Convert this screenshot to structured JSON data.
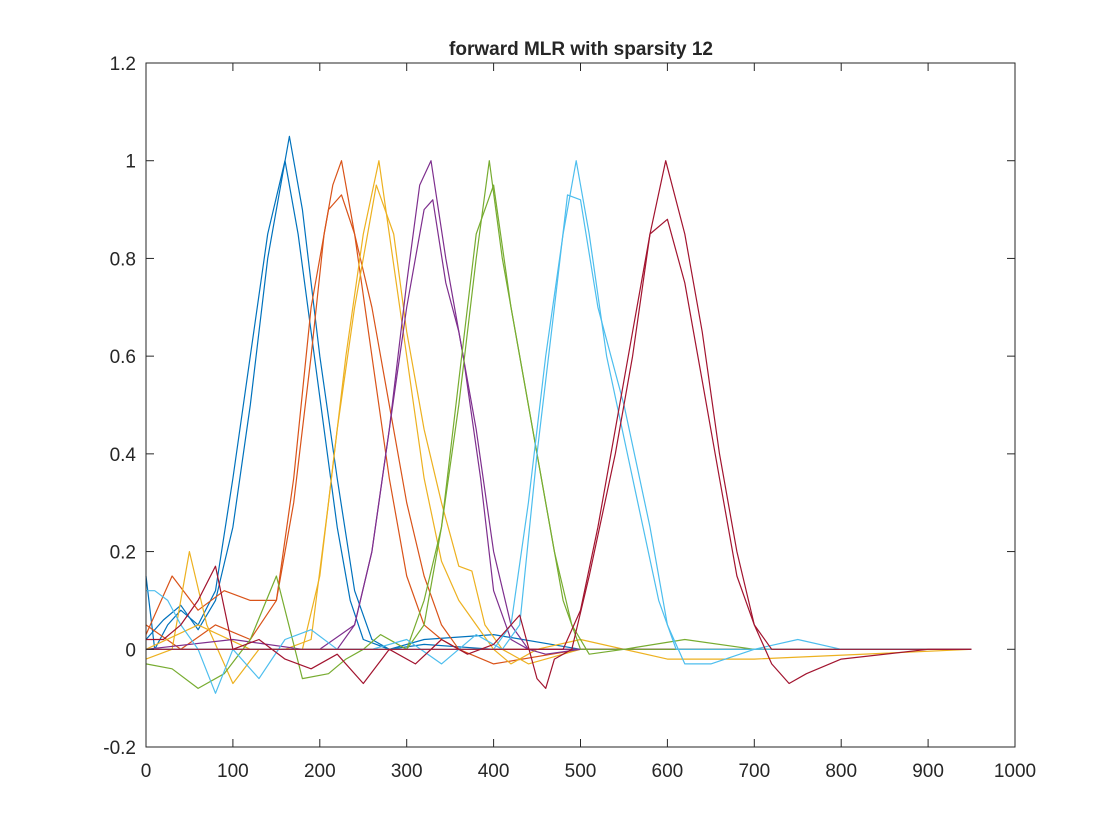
{
  "chart_data": {
    "type": "line",
    "title": "forward MLR with sparsity 12",
    "xlabel": "",
    "ylabel": "",
    "xlim": [
      0,
      1000
    ],
    "ylim": [
      -0.2,
      1.2
    ],
    "xticks": [
      "0",
      "100",
      "200",
      "300",
      "400",
      "500",
      "600",
      "700",
      "800",
      "900",
      "1000"
    ],
    "yticks": [
      "-0.2",
      "0",
      "0.2",
      "0.4",
      "0.6",
      "0.8",
      "1",
      "1.2"
    ],
    "grid": false,
    "legend": "none",
    "series": [
      {
        "color": "#0072BD",
        "x": [
          0,
          10,
          25,
          40,
          60,
          80,
          100,
          120,
          140,
          160,
          175,
          190,
          205,
          220,
          235,
          250,
          280,
          320,
          400,
          500,
          600,
          700,
          800,
          950
        ],
        "y": [
          0.15,
          0.0,
          0.05,
          0.08,
          0.05,
          0.12,
          0.35,
          0.6,
          0.85,
          1.0,
          0.85,
          0.65,
          0.45,
          0.25,
          0.1,
          0.02,
          0.0,
          0.01,
          0.0,
          0.0,
          0.0,
          0.0,
          0.0,
          0.0
        ]
      },
      {
        "color": "#0072BD",
        "x": [
          0,
          20,
          40,
          60,
          80,
          100,
          120,
          140,
          165,
          180,
          200,
          220,
          240,
          260,
          280,
          320,
          400,
          500,
          600,
          700,
          800,
          950
        ],
        "y": [
          0.02,
          0.06,
          0.09,
          0.04,
          0.1,
          0.25,
          0.5,
          0.8,
          1.05,
          0.9,
          0.6,
          0.35,
          0.12,
          0.02,
          0.0,
          0.02,
          0.03,
          0.0,
          0.0,
          0.0,
          0.0,
          0.0
        ]
      },
      {
        "color": "#D95319",
        "x": [
          0,
          30,
          60,
          90,
          120,
          150,
          170,
          190,
          205,
          215,
          225,
          240,
          260,
          280,
          300,
          320,
          340,
          360,
          380,
          420,
          500,
          600,
          700,
          950
        ],
        "y": [
          0.03,
          0.15,
          0.08,
          0.12,
          0.1,
          0.1,
          0.3,
          0.6,
          0.85,
          0.95,
          1.0,
          0.85,
          0.6,
          0.35,
          0.15,
          0.05,
          0.02,
          0.0,
          0.0,
          0.0,
          0.0,
          0.0,
          0.0,
          0.0
        ]
      },
      {
        "color": "#D95319",
        "x": [
          0,
          40,
          80,
          120,
          150,
          170,
          190,
          210,
          225,
          240,
          260,
          280,
          300,
          320,
          340,
          360,
          400,
          500,
          700,
          950
        ],
        "y": [
          0.05,
          0.0,
          0.05,
          0.02,
          0.1,
          0.35,
          0.7,
          0.9,
          0.93,
          0.85,
          0.7,
          0.5,
          0.3,
          0.15,
          0.05,
          0.0,
          -0.03,
          0.0,
          0.0,
          0.0
        ]
      },
      {
        "color": "#EDB120",
        "x": [
          0,
          30,
          50,
          70,
          100,
          130,
          160,
          190,
          210,
          230,
          250,
          268,
          280,
          300,
          320,
          340,
          360,
          380,
          400,
          420,
          450,
          500,
          600,
          700,
          950
        ],
        "y": [
          -0.02,
          0.0,
          0.2,
          0.05,
          -0.07,
          0.0,
          0.0,
          0.02,
          0.3,
          0.6,
          0.85,
          1.0,
          0.85,
          0.6,
          0.35,
          0.18,
          0.1,
          0.05,
          0.0,
          -0.03,
          0.0,
          0.02,
          -0.02,
          -0.02,
          0.0
        ]
      },
      {
        "color": "#EDB120",
        "x": [
          0,
          60,
          120,
          180,
          200,
          220,
          240,
          265,
          285,
          300,
          320,
          340,
          360,
          375,
          390,
          410,
          440,
          500,
          700,
          950
        ],
        "y": [
          0.0,
          0.05,
          0.0,
          0.0,
          0.15,
          0.45,
          0.7,
          0.95,
          0.85,
          0.65,
          0.45,
          0.3,
          0.17,
          0.16,
          0.05,
          0.0,
          -0.03,
          0.0,
          0.0,
          0.0
        ]
      },
      {
        "color": "#7E2F8E",
        "x": [
          0,
          100,
          180,
          220,
          240,
          260,
          280,
          300,
          315,
          328,
          345,
          365,
          385,
          400,
          420,
          440,
          460,
          480,
          500,
          950
        ],
        "y": [
          0.0,
          0.02,
          0.0,
          0.0,
          0.05,
          0.2,
          0.45,
          0.75,
          0.95,
          1.0,
          0.8,
          0.6,
          0.35,
          0.12,
          0.02,
          0.0,
          0.0,
          0.0,
          0.0,
          0.0
        ]
      },
      {
        "color": "#7E2F8E",
        "x": [
          0,
          100,
          200,
          240,
          260,
          280,
          300,
          320,
          330,
          345,
          360,
          380,
          400,
          420,
          440,
          460,
          500,
          950
        ],
        "y": [
          0.0,
          0.0,
          0.0,
          0.05,
          0.2,
          0.45,
          0.7,
          0.9,
          0.92,
          0.75,
          0.65,
          0.45,
          0.2,
          0.05,
          0.0,
          -0.01,
          0.0,
          0.0
        ]
      },
      {
        "color": "#77AC30",
        "x": [
          0,
          30,
          60,
          90,
          120,
          150,
          180,
          210,
          230,
          250,
          270,
          300,
          320,
          340,
          360,
          380,
          395,
          410,
          430,
          450,
          470,
          490,
          510,
          550,
          620,
          700,
          800,
          950
        ],
        "y": [
          -0.03,
          -0.04,
          -0.08,
          -0.05,
          0.02,
          0.15,
          -0.06,
          -0.05,
          -0.02,
          0.0,
          0.03,
          0.0,
          0.1,
          0.25,
          0.5,
          0.8,
          1.0,
          0.8,
          0.6,
          0.4,
          0.2,
          0.05,
          -0.01,
          0.0,
          0.02,
          0.0,
          0.0,
          0.0
        ]
      },
      {
        "color": "#77AC30",
        "x": [
          0,
          100,
          200,
          300,
          320,
          340,
          360,
          380,
          400,
          420,
          440,
          460,
          480,
          500,
          600,
          950
        ],
        "y": [
          0.0,
          0.0,
          0.0,
          0.0,
          0.05,
          0.25,
          0.55,
          0.85,
          0.95,
          0.7,
          0.5,
          0.3,
          0.1,
          0.0,
          0.0,
          0.0
        ]
      },
      {
        "color": "#4DBEEE",
        "x": [
          0,
          10,
          25,
          40,
          60,
          80,
          100,
          130,
          160,
          190,
          220,
          260,
          300,
          340,
          380,
          410,
          430,
          450,
          470,
          485,
          500,
          520,
          550,
          580,
          600,
          620,
          650,
          700,
          750,
          800,
          950
        ],
        "y": [
          0.12,
          0.12,
          0.1,
          0.05,
          0.0,
          -0.09,
          0.0,
          -0.06,
          0.02,
          0.04,
          0.0,
          0.0,
          0.02,
          -0.03,
          0.03,
          0.0,
          0.05,
          0.4,
          0.7,
          0.93,
          0.92,
          0.7,
          0.5,
          0.25,
          0.05,
          -0.03,
          -0.03,
          0.0,
          0.02,
          0.0,
          0.0
        ]
      },
      {
        "color": "#4DBEEE",
        "x": [
          0,
          200,
          400,
          420,
          440,
          460,
          480,
          495,
          510,
          530,
          560,
          590,
          610,
          640,
          700,
          950
        ],
        "y": [
          0.0,
          0.0,
          0.0,
          0.05,
          0.3,
          0.6,
          0.85,
          1.0,
          0.85,
          0.6,
          0.35,
          0.1,
          0.0,
          0.0,
          0.0,
          0.0
        ]
      },
      {
        "color": "#A2142F",
        "x": [
          0,
          20,
          40,
          60,
          80,
          100,
          130,
          160,
          190,
          220,
          250,
          280,
          310,
          340,
          370,
          400,
          430,
          450,
          460,
          470,
          490,
          510,
          540,
          560,
          580,
          598,
          620,
          640,
          660,
          680,
          700,
          720,
          740,
          760,
          800,
          900,
          950
        ],
        "y": [
          0.02,
          0.02,
          0.05,
          0.1,
          0.17,
          0.0,
          0.02,
          -0.02,
          -0.04,
          -0.01,
          -0.07,
          0.0,
          -0.03,
          0.02,
          -0.01,
          0.01,
          0.07,
          -0.06,
          -0.08,
          -0.02,
          0.0,
          0.15,
          0.4,
          0.6,
          0.85,
          1.0,
          0.85,
          0.65,
          0.4,
          0.2,
          0.05,
          -0.03,
          -0.07,
          -0.05,
          -0.02,
          0.0,
          0.0
        ]
      },
      {
        "color": "#A2142F",
        "x": [
          0,
          200,
          400,
          480,
          500,
          520,
          540,
          560,
          580,
          600,
          620,
          640,
          660,
          680,
          700,
          720,
          760,
          800,
          950
        ],
        "y": [
          0.0,
          0.0,
          0.0,
          0.0,
          0.08,
          0.25,
          0.45,
          0.65,
          0.85,
          0.88,
          0.75,
          0.55,
          0.35,
          0.15,
          0.05,
          0.0,
          0.0,
          0.0,
          0.0
        ]
      }
    ]
  }
}
